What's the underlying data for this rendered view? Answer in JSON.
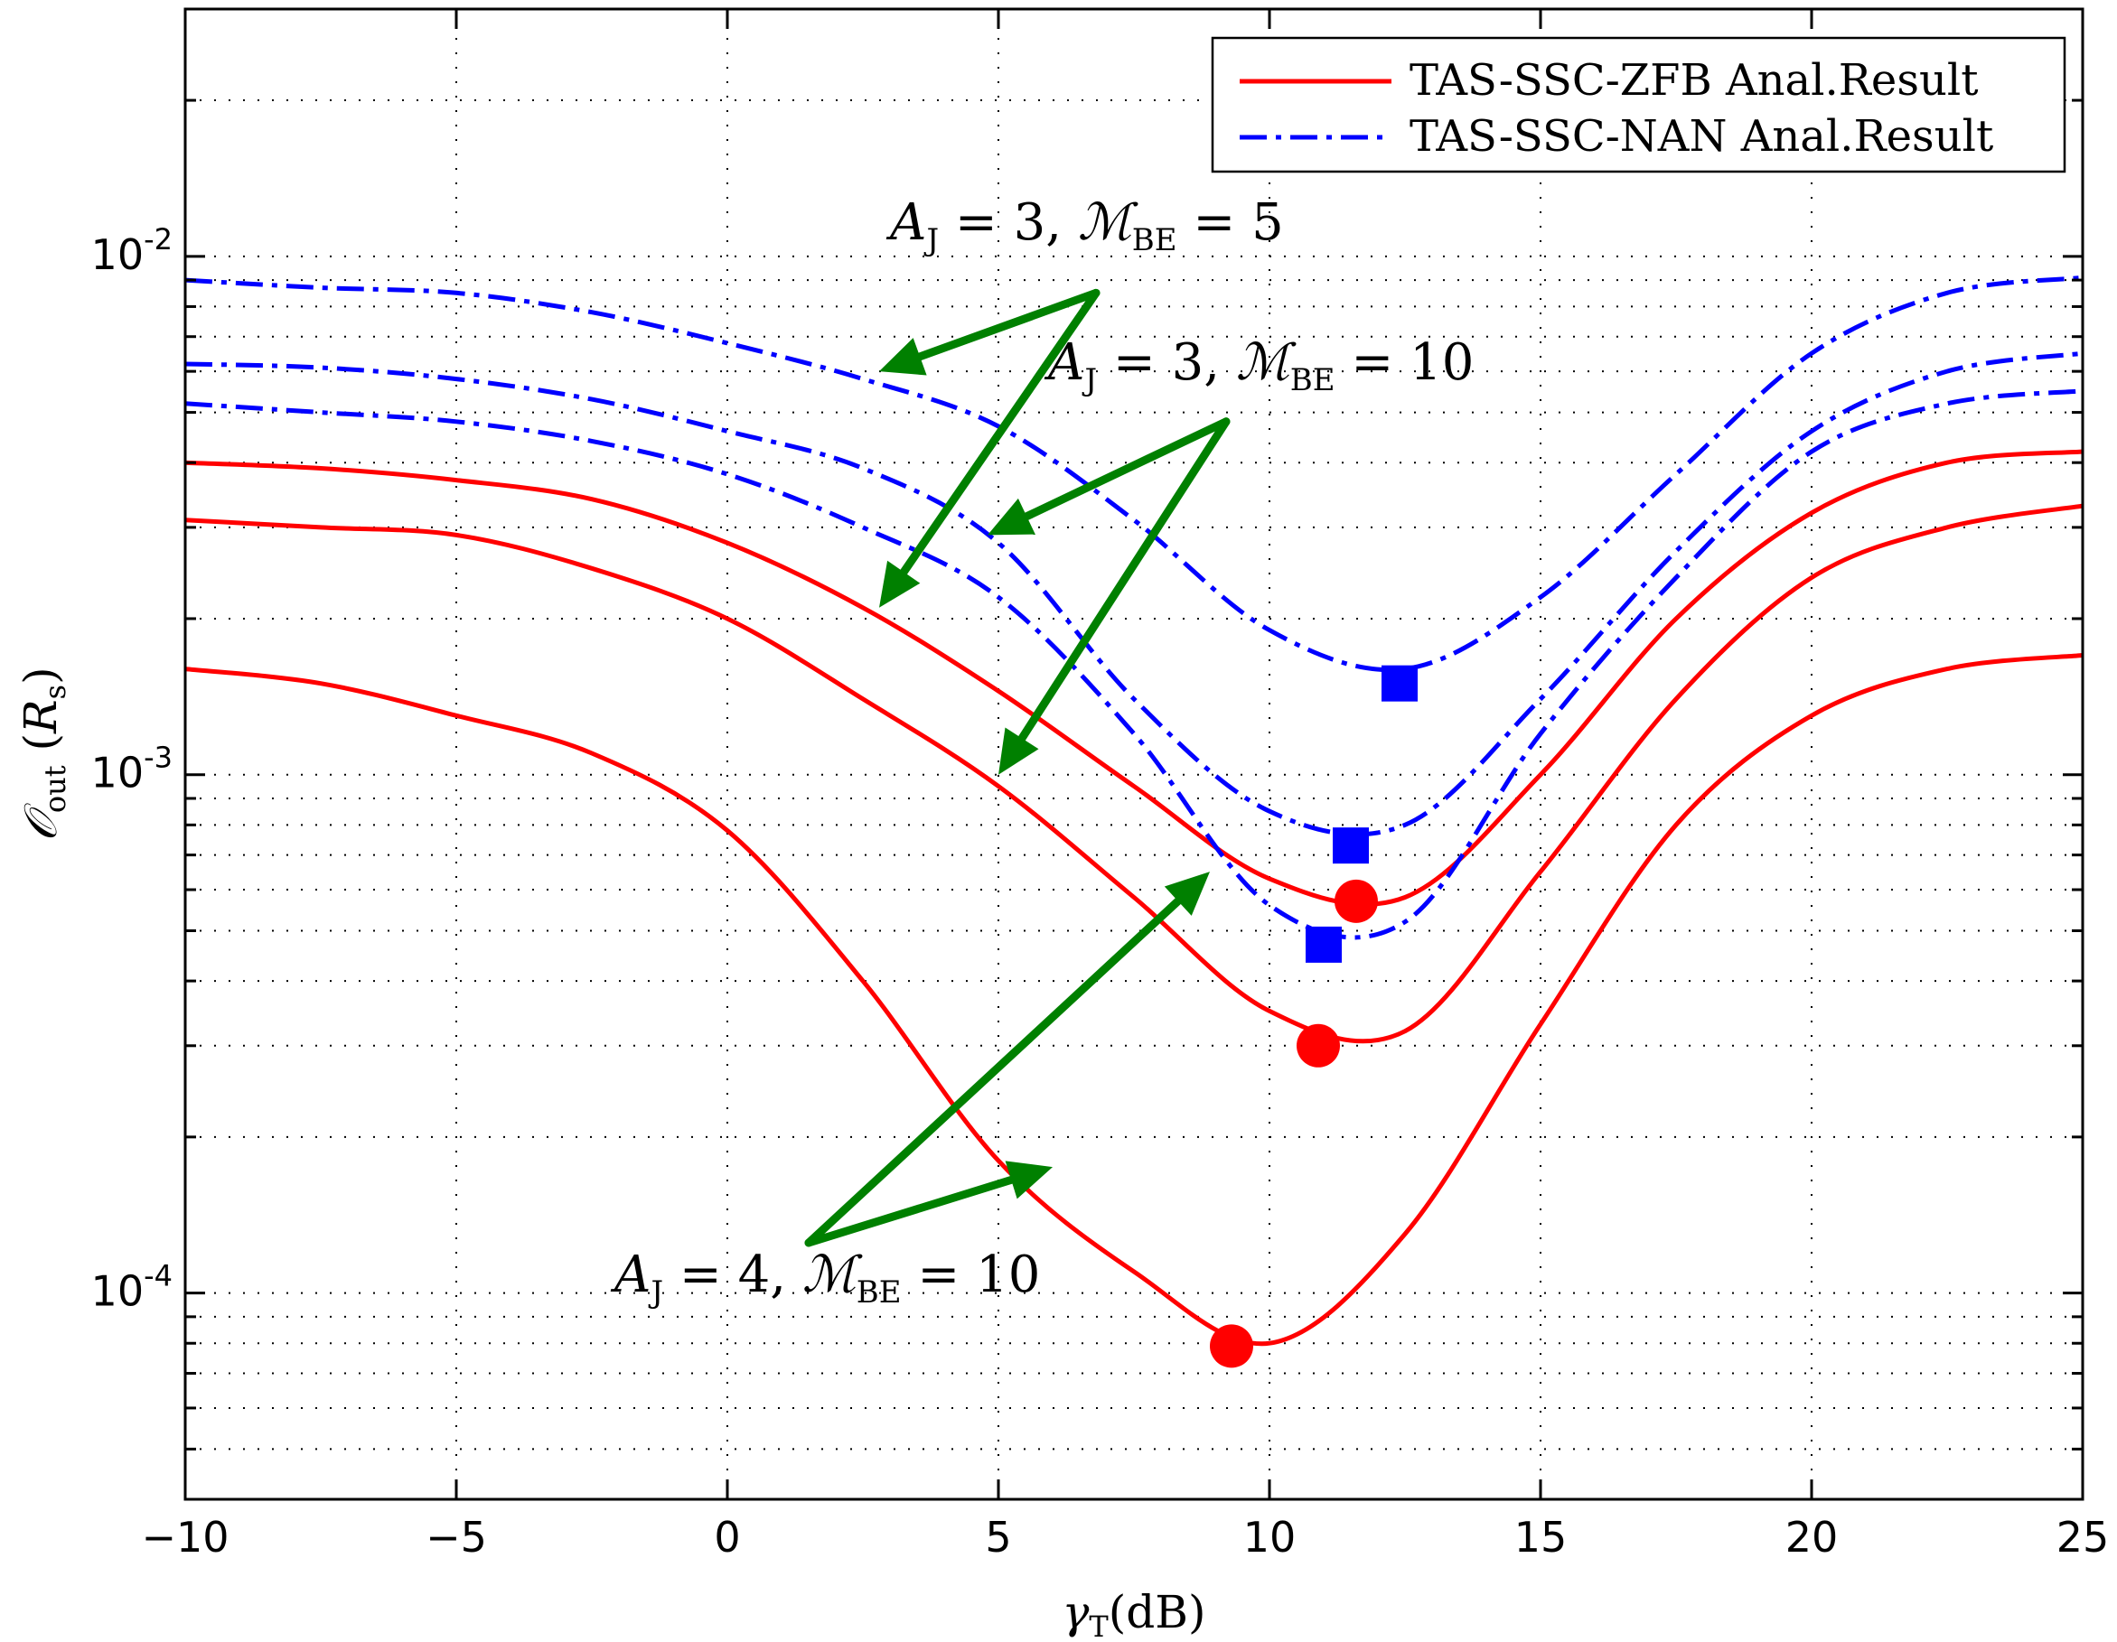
{
  "chart_data": {
    "type": "line",
    "title": "",
    "xlabel": "γ_T(dB)",
    "ylabel": "𝒪_out (R_s)",
    "xlim": [
      -10,
      25
    ],
    "ylim": [
      4e-05,
      0.03
    ],
    "yscale": "log",
    "grid": true,
    "legend_position": "top-right",
    "xticks": [
      -10,
      -5,
      0,
      5,
      10,
      15,
      20,
      25
    ],
    "xtick_labels": [
      "−10",
      "−5",
      "0",
      "5",
      "10",
      "15",
      "20",
      "25"
    ],
    "yticks": [
      0.0001,
      0.001,
      0.01
    ],
    "ytick_labels": [
      "10^-4",
      "10^-3",
      "10^-2"
    ],
    "legend": [
      {
        "name": "TAS-SSC-ZFB Anal.Result",
        "color": "#ff0000",
        "dash": "solid"
      },
      {
        "name": "TAS-SSC-NAN Anal.Result",
        "color": "#0000ff",
        "dash": "dashdot"
      }
    ],
    "x": [
      -10,
      -7.5,
      -5,
      -2.5,
      0,
      2.5,
      5,
      7.5,
      10,
      12.5,
      15,
      17.5,
      20,
      22.5,
      25
    ],
    "series": [
      {
        "name": "TAS-SSC-ZFB Anal.Result",
        "case": "A_J=3, M_BE=5",
        "color": "#ff0000",
        "values": [
          0.004,
          0.0039,
          0.0037,
          0.0034,
          0.0028,
          0.0021,
          0.00145,
          0.00095,
          0.00063,
          0.00058,
          0.001,
          0.002,
          0.0032,
          0.004,
          0.0042
        ]
      },
      {
        "name": "TAS-SSC-ZFB Anal.Result",
        "case": "A_J=3, M_BE=10",
        "color": "#ff0000",
        "values": [
          0.0031,
          0.003,
          0.0029,
          0.0025,
          0.002,
          0.0014,
          0.00095,
          0.00058,
          0.00035,
          0.00032,
          0.00065,
          0.0014,
          0.0024,
          0.003,
          0.0033
        ]
      },
      {
        "name": "TAS-SSC-ZFB Anal.Result",
        "case": "A_J=4, M_BE=10",
        "color": "#ff0000",
        "values": [
          0.0016,
          0.0015,
          0.0013,
          0.0011,
          0.00078,
          0.0004,
          0.00018,
          0.00011,
          8e-05,
          0.00013,
          0.00033,
          0.0008,
          0.0013,
          0.0016,
          0.0017
        ]
      },
      {
        "name": "TAS-SSC-NAN Anal.Result",
        "case": "A_J=3, M_BE=5",
        "color": "#0000ff",
        "values": [
          0.009,
          0.0087,
          0.0085,
          0.0078,
          0.0068,
          0.0058,
          0.0047,
          0.0031,
          0.0019,
          0.0016,
          0.0022,
          0.0038,
          0.0065,
          0.0085,
          0.0091
        ]
      },
      {
        "name": "TAS-SSC-NAN Anal.Result",
        "case": "A_J=3, M_BE=10",
        "color": "#0000ff",
        "values": [
          0.0062,
          0.0061,
          0.0058,
          0.0053,
          0.0046,
          0.0039,
          0.0028,
          0.0014,
          0.00085,
          0.0008,
          0.0014,
          0.0027,
          0.0046,
          0.006,
          0.0065
        ]
      },
      {
        "name": "TAS-SSC-NAN Anal.Result",
        "case": "A_J=4, M_BE=10",
        "color": "#0000ff",
        "values": [
          0.0052,
          0.005,
          0.0048,
          0.0044,
          0.0038,
          0.003,
          0.0022,
          0.0012,
          0.00056,
          0.00052,
          0.0012,
          0.0024,
          0.0042,
          0.0052,
          0.0055
        ]
      }
    ],
    "optimal_points": [
      {
        "series": "ZFB A_J=3, M_BE=5",
        "marker": "circle",
        "color": "#ff0000",
        "x": 11.6,
        "y": 0.00057
      },
      {
        "series": "ZFB A_J=3, M_BE=10",
        "marker": "circle",
        "color": "#ff0000",
        "x": 10.9,
        "y": 0.0003
      },
      {
        "series": "ZFB A_J=4, M_BE=10",
        "marker": "circle",
        "color": "#ff0000",
        "x": 9.3,
        "y": 7.9e-05
      },
      {
        "series": "NAN A_J=3, M_BE=5",
        "marker": "square",
        "color": "#0000ff",
        "x": 12.4,
        "y": 0.0015
      },
      {
        "series": "NAN A_J=3, M_BE=10",
        "marker": "square",
        "color": "#0000ff",
        "x": 11.5,
        "y": 0.00073
      },
      {
        "series": "NAN A_J=4, M_BE=10",
        "marker": "square",
        "color": "#0000ff",
        "x": 11.0,
        "y": 0.00047
      }
    ],
    "annotations": [
      {
        "text": "A_J = 3, M_BE = 5",
        "color": "#008000",
        "anchor": {
          "x": 6.8,
          "y": 0.0085
        },
        "targets": [
          {
            "x": 2.8,
            "y": 0.006
          },
          {
            "x": 2.8,
            "y": 0.0021
          }
        ]
      },
      {
        "text": "A_J = 3, M_BE = 10",
        "color": "#008000",
        "anchor": {
          "x": 9.2,
          "y": 0.0048
        },
        "targets": [
          {
            "x": 4.8,
            "y": 0.0029
          },
          {
            "x": 5.0,
            "y": 0.001
          }
        ]
      },
      {
        "text": "A_J = 4, M_BE = 10",
        "color": "#008000",
        "anchor": {
          "x": 1.5,
          "y": 0.000125
        },
        "targets": [
          {
            "x": 8.9,
            "y": 0.00065
          },
          {
            "x": 6.0,
            "y": 0.000175
          }
        ]
      }
    ]
  }
}
